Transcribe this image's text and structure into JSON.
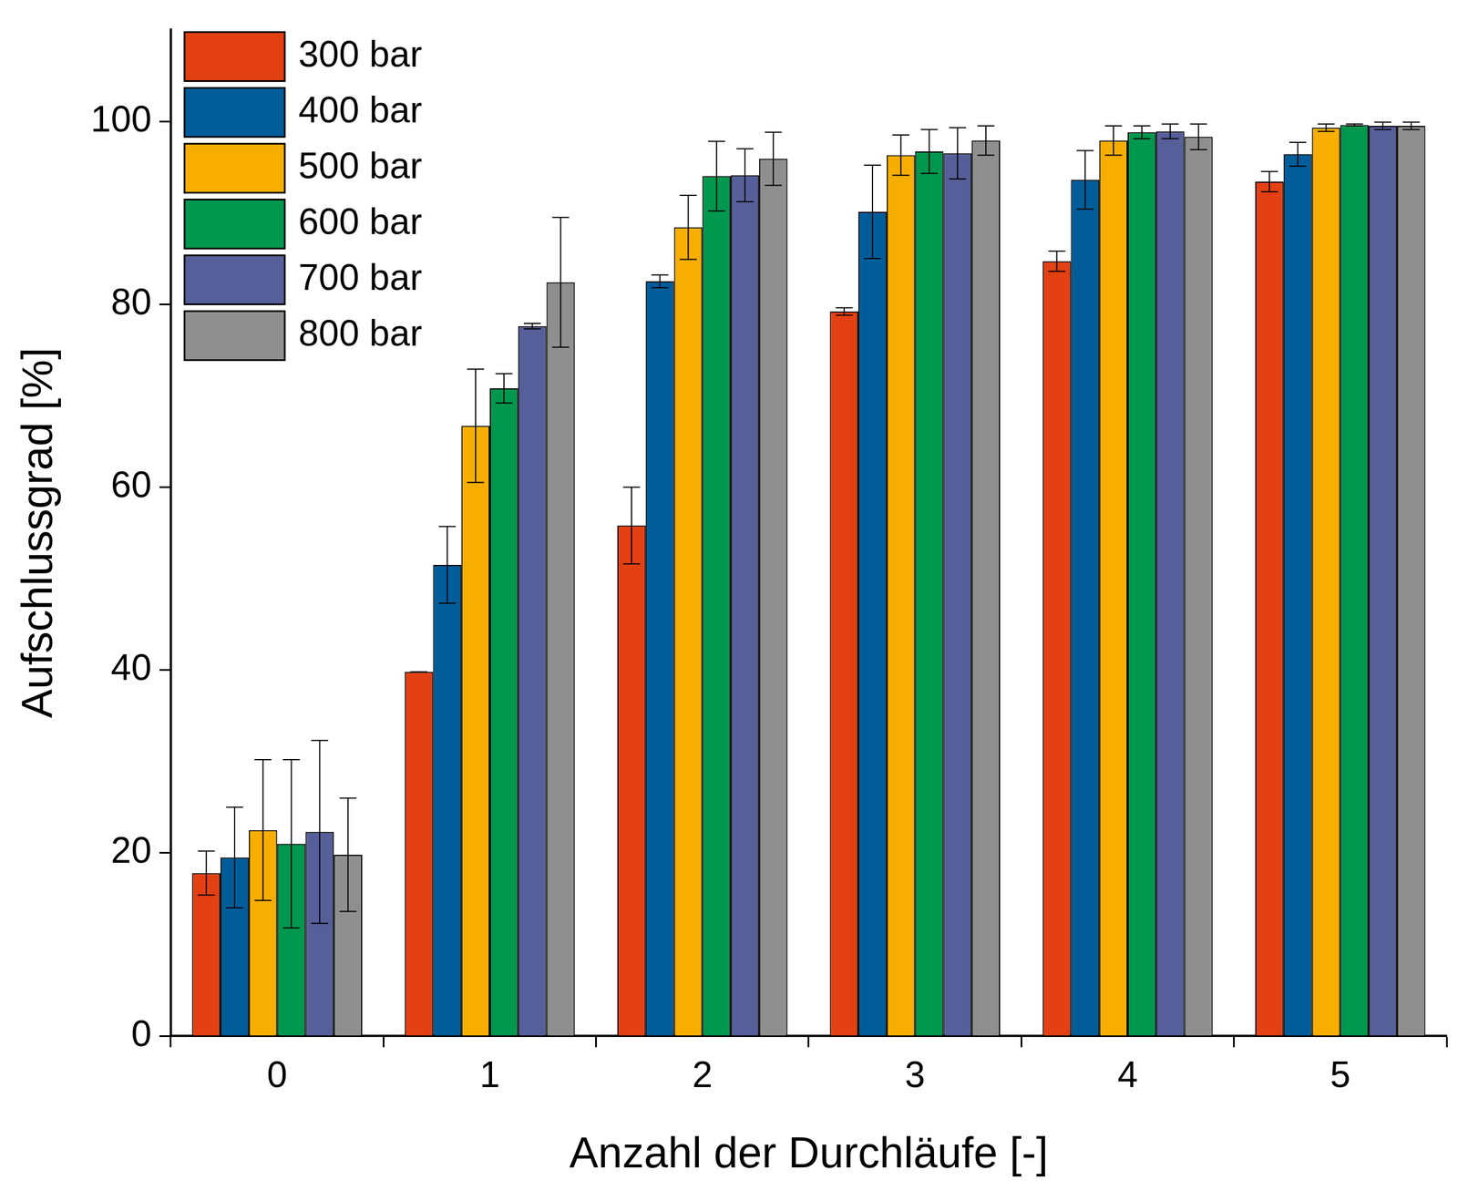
{
  "chart_data": {
    "type": "bar",
    "x_label": "Anzahl der Durchläufe [-]",
    "y_label": "Aufschlussgrad [%]",
    "categories": [
      "0",
      "1",
      "2",
      "3",
      "4",
      "5"
    ],
    "series": [
      {
        "name": "300 bar",
        "color": "#e34013",
        "values": [
          17.8,
          39.8,
          55.8,
          79.2,
          84.7,
          93.4
        ],
        "errors": [
          2.4,
          0,
          4.2,
          0.4,
          1.1,
          1.1
        ]
      },
      {
        "name": "400 bar",
        "color": "#005d9a",
        "values": [
          19.5,
          51.5,
          82.5,
          90.1,
          93.6,
          96.4
        ],
        "errors": [
          5.5,
          4.2,
          0.7,
          5.1,
          3.2,
          1.3
        ]
      },
      {
        "name": "500 bar",
        "color": "#f7ae00",
        "values": [
          22.5,
          66.7,
          88.4,
          96.3,
          97.9,
          99.3
        ],
        "errors": [
          7.7,
          6.2,
          3.5,
          2.2,
          1.6,
          0.4
        ]
      },
      {
        "name": "600 bar",
        "color": "#00974e",
        "values": [
          21.0,
          70.8,
          94.0,
          96.7,
          98.8,
          99.6
        ],
        "errors": [
          9.2,
          1.6,
          3.8,
          2.4,
          0.7,
          0.1
        ]
      },
      {
        "name": "700 bar",
        "color": "#565f99",
        "values": [
          22.3,
          77.6,
          94.1,
          96.5,
          98.9,
          99.5
        ],
        "errors": [
          10.0,
          0.3,
          2.9,
          2.8,
          0.8,
          0.4
        ]
      },
      {
        "name": "800 bar",
        "color": "#8f8f8f",
        "values": [
          19.8,
          82.4,
          95.9,
          97.9,
          98.3,
          99.5
        ],
        "errors": [
          6.2,
          7.1,
          2.9,
          1.6,
          1.4,
          0.4
        ]
      }
    ],
    "ylim": [
      0,
      110
    ],
    "yticks": [
      0,
      20,
      40,
      60,
      80,
      100
    ],
    "grid": false,
    "legend": "upper left"
  }
}
